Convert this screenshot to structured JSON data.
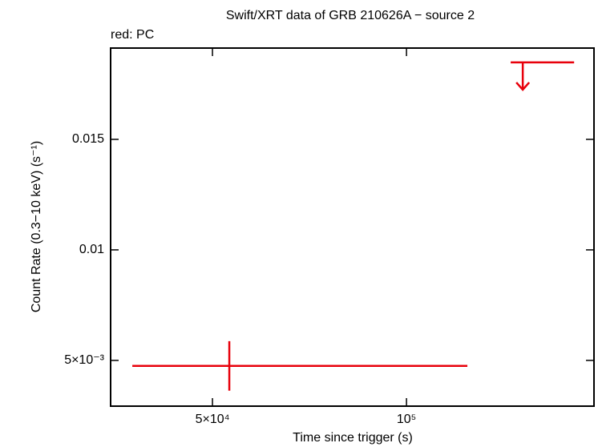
{
  "chart_data": {
    "type": "errorbar",
    "title": "Swift/XRT data of GRB 210626A − source 2",
    "subtitle": "red: PC",
    "x_label": "Time since trigger (s)",
    "y_label": "Count Rate (0.3−10 keV) (s⁻¹)",
    "x_log": true,
    "xlim": [
      34750,
      195400
    ],
    "xticks": [
      {
        "value": 50000,
        "label": "5×10⁴"
      },
      {
        "value": 100000,
        "label": "10⁵"
      }
    ],
    "ylim": [
      0.00293,
      0.01913
    ],
    "yticks": [
      {
        "value": 0.005,
        "label": "5×10⁻³"
      },
      0.01,
      0.015
    ],
    "color": "#e8000b",
    "points": {
      "x": [
        53100
      ],
      "x_low": [
        37550
      ],
      "x_high": [
        124300
      ],
      "y": [
        0.00475
      ],
      "y_err": [
        0.00112
      ]
    },
    "upper_limits": {
      "x": [
        151500
      ],
      "x_low": [
        145100
      ],
      "x_high": [
        182000
      ],
      "y": [
        0.01848
      ]
    }
  }
}
